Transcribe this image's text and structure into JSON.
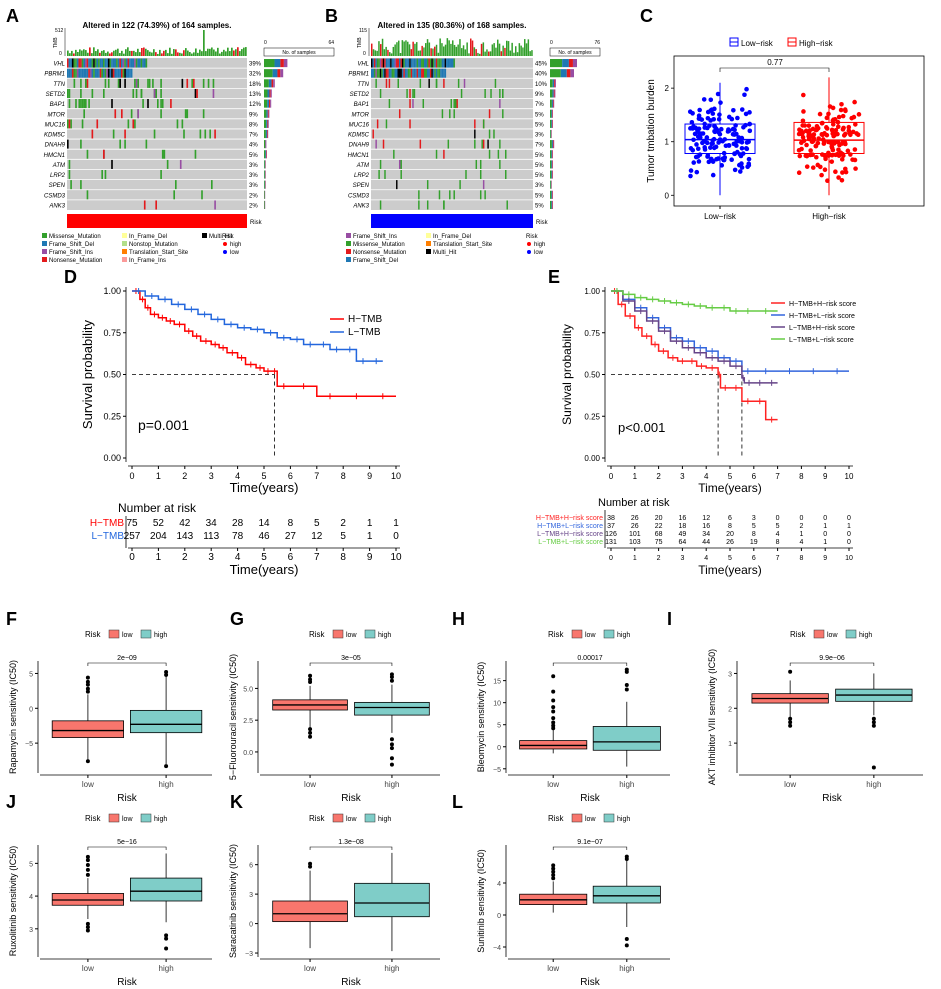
{
  "chart_data": [
    {
      "panel": "A",
      "type": "heatmap",
      "title": "Altered in 122 (74.39%) of 164 samples.",
      "tmb_axis": {
        "label": "TMB",
        "max": "512",
        "min": "0"
      },
      "count_axis": {
        "label": "No. of samples",
        "min": "0",
        "max": "64"
      },
      "genes": [
        "VHL",
        "PBRM1",
        "TTN",
        "SETD2",
        "BAP1",
        "MTOR",
        "MUC16",
        "KDM5C",
        "DNAH9",
        "HMCN1",
        "ATM",
        "LRP2",
        "SPEN",
        "CSMD3",
        "ANK3"
      ],
      "percent": [
        "39%",
        "32%",
        "18%",
        "13%",
        "12%",
        "9%",
        "8%",
        "7%",
        "4%",
        "5%",
        "3%",
        "3%",
        "3%",
        "2%",
        "2%"
      ],
      "risk_bar": {
        "label": "Risk",
        "color": "#ff0000"
      },
      "legend": [
        "Missense_Mutation",
        "Frame_Shift_Del",
        "Frame_Shift_Ins",
        "Nonsense_Mutation",
        "In_Frame_Del",
        "Nonstop_Mutation",
        "Translation_Start_Site",
        "In_Frame_Ins",
        "Multi_Hit"
      ],
      "legend_colors": [
        "#33a02c",
        "#1f78b4",
        "#984ea3",
        "#e31a1c",
        "#ffff99",
        "#b2df8a",
        "#ff7f00",
        "#fb9a99",
        "#000000"
      ],
      "risk_legend": {
        "title": "Risk",
        "items": [
          "high",
          "low"
        ],
        "colors": [
          "#ff0000",
          "#0000ff"
        ]
      }
    },
    {
      "panel": "B",
      "type": "heatmap",
      "title": "Altered in 135 (80.36%) of 168 samples.",
      "tmb_axis": {
        "label": "TMB",
        "max": "115",
        "min": "0"
      },
      "count_axis": {
        "label": "No. of samples",
        "min": "0",
        "max": "76"
      },
      "genes": [
        "VHL",
        "PBRM1",
        "TTN",
        "SETD2",
        "BAP1",
        "MTOR",
        "MUC16",
        "KDM5C",
        "DNAH9",
        "HMCN1",
        "ATM",
        "LRP2",
        "SPEN",
        "CSMD3",
        "ANK3"
      ],
      "percent": [
        "45%",
        "40%",
        "10%",
        "9%",
        "7%",
        "5%",
        "5%",
        "3%",
        "7%",
        "5%",
        "5%",
        "5%",
        "3%",
        "5%",
        "5%"
      ],
      "risk_bar": {
        "label": "Risk",
        "color": "#0000ff"
      },
      "legend": [
        "Frame_Shift_Ins",
        "Missense_Mutation",
        "Nonsense_Mutation",
        "Frame_Shift_Del",
        "In_Frame_Del",
        "Translation_Start_Site",
        "Multi_Hit"
      ],
      "legend_colors": [
        "#984ea3",
        "#33a02c",
        "#e31a1c",
        "#1f78b4",
        "#ffff99",
        "#ff7f00",
        "#000000"
      ],
      "risk_legend": {
        "title": "Risk",
        "items": [
          "high",
          "low"
        ],
        "colors": [
          "#ff0000",
          "#0000ff"
        ]
      }
    },
    {
      "panel": "C",
      "type": "scatter",
      "ylabel": "Tumor tmbation burden",
      "categories": [
        "Low−risk",
        "High−risk"
      ],
      "legend": [
        "Low−risk",
        "High−risk"
      ],
      "colors": [
        "#0000ff",
        "#ff0000"
      ],
      "p_value": "0.77",
      "yticks": [
        0,
        1,
        2
      ],
      "ylim": [
        -0.2,
        2.6
      ],
      "box": [
        {
          "q1": 0.78,
          "median": 1.04,
          "q3": 1.33,
          "lo": 0.0,
          "hi": 2.1
        },
        {
          "q1": 0.78,
          "median": 1.03,
          "q3": 1.36,
          "lo": 0.0,
          "hi": 2.2
        }
      ]
    },
    {
      "panel": "D",
      "type": "line",
      "ylabel": "Survival probability",
      "xlabel": "Time(years)",
      "xlim": [
        0,
        10
      ],
      "ylim": [
        0,
        1
      ],
      "xticks": [
        0,
        1,
        2,
        3,
        4,
        5,
        6,
        7,
        8,
        9,
        10
      ],
      "yticks": [
        "0.00",
        "0.25",
        "0.50",
        "0.75",
        "1.00"
      ],
      "pvalue": "p=0.001",
      "series": [
        {
          "name": "H−TMB",
          "color": "#ff0000",
          "x": [
            0,
            0.3,
            0.5,
            0.7,
            1.0,
            1.3,
            1.6,
            2.0,
            2.3,
            2.6,
            3.0,
            3.3,
            3.6,
            4.0,
            4.3,
            4.7,
            5.0,
            5.3,
            5.5,
            6.0,
            7.0,
            8.0,
            9.0,
            10.0
          ],
          "y": [
            1,
            0.95,
            0.9,
            0.86,
            0.84,
            0.82,
            0.8,
            0.76,
            0.73,
            0.7,
            0.68,
            0.66,
            0.63,
            0.6,
            0.56,
            0.54,
            0.52,
            0.52,
            0.43,
            0.43,
            0.37,
            0.37,
            0.37,
            0.37
          ]
        },
        {
          "name": "L−TMB",
          "color": "#2266dd",
          "x": [
            0,
            0.5,
            1.0,
            1.5,
            2.0,
            2.5,
            3.0,
            3.5,
            4.0,
            4.5,
            5.0,
            5.5,
            6.0,
            6.5,
            7.0,
            7.5,
            8.0,
            8.5,
            9.0,
            9.5
          ],
          "y": [
            1,
            0.97,
            0.95,
            0.92,
            0.89,
            0.86,
            0.83,
            0.8,
            0.78,
            0.77,
            0.75,
            0.72,
            0.71,
            0.68,
            0.68,
            0.65,
            0.65,
            0.58,
            0.58,
            0.58
          ]
        }
      ],
      "risk_table": {
        "title": "Number at risk",
        "xlabel": "Time(years)",
        "rows": [
          {
            "name": "H−TMB",
            "color": "#ff0000",
            "values": [
              "75",
              "52",
              "42",
              "34",
              "28",
              "14",
              "8",
              "5",
              "2",
              "1",
              "1"
            ]
          },
          {
            "name": "L−TMB",
            "color": "#2266dd",
            "values": [
              "257",
              "204",
              "143",
              "113",
              "78",
              "46",
              "27",
              "12",
              "5",
              "1",
              "0"
            ]
          }
        ]
      }
    },
    {
      "panel": "E",
      "type": "line",
      "ylabel": "Survival probability",
      "xlabel": "Time(years)",
      "xlim": [
        0,
        10
      ],
      "ylim": [
        0,
        1
      ],
      "xticks": [
        0,
        1,
        2,
        3,
        4,
        5,
        6,
        7,
        8,
        9,
        10
      ],
      "yticks": [
        "0.00",
        "0.25",
        "0.50",
        "0.75",
        "1.00"
      ],
      "pvalue": "p<0.001",
      "series": [
        {
          "name": "H−TMB+H−risk score",
          "color": "#ff2222",
          "x": [
            0,
            0.3,
            0.6,
            1.0,
            1.3,
            1.7,
            2.0,
            2.4,
            2.8,
            3.2,
            3.6,
            4.0,
            4.5,
            4.6,
            5.0,
            5.5,
            6.0,
            6.5,
            7.0
          ],
          "y": [
            1,
            0.92,
            0.85,
            0.78,
            0.73,
            0.68,
            0.64,
            0.6,
            0.58,
            0.58,
            0.55,
            0.54,
            0.5,
            0.42,
            0.42,
            0.34,
            0.34,
            0.23,
            0.23
          ]
        },
        {
          "name": "H−TMB+L−risk score",
          "color": "#3366dd",
          "x": [
            0,
            0.5,
            1.0,
            1.5,
            2.0,
            2.5,
            3.0,
            3.5,
            4.0,
            4.5,
            5.0,
            5.5,
            6.0,
            7.0,
            8.0,
            9.0,
            10.0
          ],
          "y": [
            1,
            0.95,
            0.9,
            0.84,
            0.78,
            0.72,
            0.7,
            0.66,
            0.64,
            0.6,
            0.58,
            0.52,
            0.52,
            0.52,
            0.52,
            0.52,
            0.52
          ]
        },
        {
          "name": "L−TMB+H−risk score",
          "color": "#664488",
          "x": [
            0,
            0.5,
            1.0,
            1.5,
            2.0,
            2.5,
            3.0,
            3.5,
            4.0,
            4.5,
            5.0,
            5.5,
            5.6,
            6.0,
            6.5,
            7.0
          ],
          "y": [
            1,
            0.94,
            0.88,
            0.82,
            0.76,
            0.7,
            0.66,
            0.63,
            0.6,
            0.58,
            0.55,
            0.48,
            0.45,
            0.45,
            0.45,
            0.45
          ]
        },
        {
          "name": "L−TMB+L−risk score",
          "color": "#66cc44",
          "x": [
            0,
            0.5,
            1.0,
            1.5,
            2.0,
            2.5,
            3.0,
            3.5,
            4.0,
            4.5,
            5.0,
            5.5,
            6.0,
            7.0
          ],
          "y": [
            1,
            0.98,
            0.96,
            0.95,
            0.94,
            0.93,
            0.92,
            0.91,
            0.9,
            0.9,
            0.88,
            0.88,
            0.88,
            0.88
          ]
        }
      ],
      "cutlines": [
        4.5,
        5.5
      ],
      "risk_table": {
        "title": "Number at risk",
        "xlabel": "Time(years)",
        "rows": [
          {
            "name": "H−TMB+H−risk score",
            "color": "#ff2222",
            "values": [
              "38",
              "26",
              "20",
              "16",
              "12",
              "6",
              "3",
              "0",
              "0",
              "0",
              "0"
            ]
          },
          {
            "name": "H−TMB+L−risk score",
            "color": "#3366dd",
            "values": [
              "37",
              "26",
              "22",
              "18",
              "16",
              "8",
              "5",
              "5",
              "2",
              "1",
              "1"
            ]
          },
          {
            "name": "L−TMB+H−risk score",
            "color": "#664488",
            "values": [
              "126",
              "101",
              "68",
              "49",
              "34",
              "20",
              "8",
              "4",
              "1",
              "0",
              "0"
            ]
          },
          {
            "name": "L−TMB+L−risk score",
            "color": "#66cc44",
            "values": [
              "131",
              "103",
              "75",
              "64",
              "44",
              "26",
              "19",
              "8",
              "4",
              "1",
              "0"
            ]
          }
        ]
      }
    },
    {
      "panel": "F",
      "type": "bar",
      "ylabel": "Rapamycin sensitivity (IC50)",
      "xlabel": "Risk",
      "categories": [
        "low",
        "high"
      ],
      "legend_title": "Risk",
      "legend": [
        "low",
        "high"
      ],
      "colors": [
        "#f8766d",
        "#7fcdc8"
      ],
      "pvalue": "2e−09",
      "yticks": [
        "−5",
        "0",
        "5"
      ],
      "ytick_vals": [
        -5,
        0,
        5
      ],
      "ylim": [
        -9,
        6.5
      ],
      "box": [
        {
          "lo": -7.5,
          "q1": -4.2,
          "median": -3.2,
          "q3": -1.8,
          "hi": 2.0
        },
        {
          "lo": -8.0,
          "q1": -3.5,
          "median": -2.3,
          "q3": -0.3,
          "hi": 4.6
        }
      ],
      "outliers": [
        [
          2.4,
          2.8,
          3.4,
          3.8,
          4.4,
          -7.6
        ],
        [
          4.8,
          5.2,
          -8.3
        ]
      ]
    },
    {
      "panel": "G",
      "type": "bar",
      "ylabel": "5−Fluorouracil sensitivity (IC50)",
      "xlabel": "Risk",
      "categories": [
        "low",
        "high"
      ],
      "legend_title": "Risk",
      "legend": [
        "low",
        "high"
      ],
      "colors": [
        "#f8766d",
        "#7fcdc8"
      ],
      "pvalue": "3e−05",
      "yticks": [
        "0.0",
        "2.5",
        "5.0"
      ],
      "ytick_vals": [
        0,
        2.5,
        5
      ],
      "ylim": [
        -1.5,
        7
      ],
      "box": [
        {
          "lo": 1.9,
          "q1": 3.3,
          "median": 3.7,
          "q3": 4.1,
          "hi": 5.2
        },
        {
          "lo": 1.5,
          "q1": 2.9,
          "median": 3.5,
          "q3": 3.9,
          "hi": 5.3
        }
      ],
      "outliers": [
        [
          1.2,
          1.5,
          1.8,
          5.5,
          5.7,
          6.0
        ],
        [
          1.0,
          0.6,
          0.3,
          -0.5,
          -1.0,
          5.6,
          5.9,
          6.1
        ]
      ]
    },
    {
      "panel": "H",
      "type": "bar",
      "ylabel": "Bleomycin sensitivity (IC50)",
      "xlabel": "Risk",
      "categories": [
        "low",
        "high"
      ],
      "legend_title": "Risk",
      "legend": [
        "low",
        "high"
      ],
      "colors": [
        "#f8766d",
        "#7fcdc8"
      ],
      "pvalue": "0.00017",
      "yticks": [
        "−5",
        "0",
        "5",
        "10",
        "15"
      ],
      "ytick_vals": [
        -5,
        0,
        5,
        10,
        15
      ],
      "ylim": [
        -5.5,
        19
      ],
      "box": [
        {
          "lo": -1.5,
          "q1": -0.5,
          "median": 0.3,
          "q3": 1.4,
          "hi": 3.8
        },
        {
          "lo": -4.5,
          "q1": -0.8,
          "median": 1.1,
          "q3": 4.6,
          "hi": 10.2
        }
      ],
      "outliers": [
        [
          4.2,
          4.8,
          5.5,
          6.5,
          8,
          9,
          10.5,
          12.5,
          16
        ],
        [
          13,
          14,
          17,
          17.5
        ]
      ]
    },
    {
      "panel": "I",
      "type": "bar",
      "ylabel": "AKT inhibitor VIII sensitivity (IC50)",
      "xlabel": "Risk",
      "categories": [
        "low",
        "high"
      ],
      "legend_title": "Risk",
      "legend": [
        "low",
        "high"
      ],
      "colors": [
        "#f8766d",
        "#7fcdc8"
      ],
      "pvalue": "9.9e−06",
      "yticks": [
        "1",
        "2",
        "3"
      ],
      "ytick_vals": [
        1,
        2,
        3
      ],
      "ylim": [
        0.2,
        3.3
      ],
      "box": [
        {
          "lo": 1.7,
          "q1": 2.15,
          "median": 2.28,
          "q3": 2.42,
          "hi": 2.8
        },
        {
          "lo": 1.8,
          "q1": 2.2,
          "median": 2.38,
          "q3": 2.55,
          "hi": 3.0
        }
      ],
      "outliers": [
        [
          1.5,
          1.6,
          1.7,
          3.05
        ],
        [
          1.5,
          1.6,
          1.7,
          0.3
        ]
      ]
    },
    {
      "panel": "J",
      "type": "bar",
      "ylabel": "Ruxolitinib sensitivity (IC50)",
      "xlabel": "Risk",
      "categories": [
        "low",
        "high"
      ],
      "legend_title": "Risk",
      "legend": [
        "low",
        "high"
      ],
      "colors": [
        "#f8766d",
        "#7fcdc8"
      ],
      "pvalue": "5e−16",
      "yticks": [
        "3",
        "4",
        "5"
      ],
      "ytick_vals": [
        3,
        4,
        5
      ],
      "ylim": [
        2.2,
        5.5
      ],
      "box": [
        {
          "lo": 3.3,
          "q1": 3.72,
          "median": 3.88,
          "q3": 4.08,
          "hi": 4.55
        },
        {
          "lo": 3.2,
          "q1": 3.85,
          "median": 4.15,
          "q3": 4.55,
          "hi": 5.3
        }
      ],
      "outliers": [
        [
          2.95,
          3.05,
          3.15,
          4.65,
          4.8,
          4.95,
          5.1,
          5.2
        ],
        [
          2.8,
          2.7,
          2.4
        ]
      ]
    },
    {
      "panel": "K",
      "type": "bar",
      "ylabel": "Saracatinib sensitivity (IC50)",
      "xlabel": "Risk",
      "categories": [
        "low",
        "high"
      ],
      "legend_title": "Risk",
      "legend": [
        "low",
        "high"
      ],
      "colors": [
        "#f8766d",
        "#7fcdc8"
      ],
      "pvalue": "1.3e−08",
      "yticks": [
        "−3",
        "0",
        "3",
        "6"
      ],
      "ytick_vals": [
        -3,
        0,
        3,
        6
      ],
      "ylim": [
        -3.2,
        7.8
      ],
      "box": [
        {
          "lo": -2.5,
          "q1": 0.2,
          "median": 1.0,
          "q3": 2.3,
          "hi": 5.4
        },
        {
          "lo": -2.8,
          "q1": 0.7,
          "median": 2.1,
          "q3": 4.1,
          "hi": 7.2
        }
      ],
      "outliers": [
        [
          5.8,
          6.1
        ],
        []
      ]
    },
    {
      "panel": "L",
      "type": "bar",
      "ylabel": "Sunitinib sensitivity (IC50)",
      "xlabel": "Risk",
      "categories": [
        "low",
        "high"
      ],
      "legend_title": "Risk",
      "legend": [
        "low",
        "high"
      ],
      "colors": [
        "#f8766d",
        "#7fcdc8"
      ],
      "pvalue": "9.1e−07",
      "yticks": [
        "−4",
        "0",
        "4"
      ],
      "ytick_vals": [
        -4,
        0,
        4
      ],
      "ylim": [
        -5,
        8.5
      ],
      "box": [
        {
          "lo": 0.3,
          "q1": 1.3,
          "median": 1.9,
          "q3": 2.6,
          "hi": 4.2
        },
        {
          "lo": -1.5,
          "q1": 1.5,
          "median": 2.4,
          "q3": 3.6,
          "hi": 6.8
        }
      ],
      "outliers": [
        [
          4.6,
          5.0,
          5.4,
          5.8,
          6.2
        ],
        [
          -3.0,
          -3.8,
          7.0,
          7.3
        ]
      ]
    }
  ],
  "panel_letters": [
    "A",
    "B",
    "C",
    "D",
    "E",
    "F",
    "G",
    "H",
    "I",
    "J",
    "K",
    "L"
  ]
}
